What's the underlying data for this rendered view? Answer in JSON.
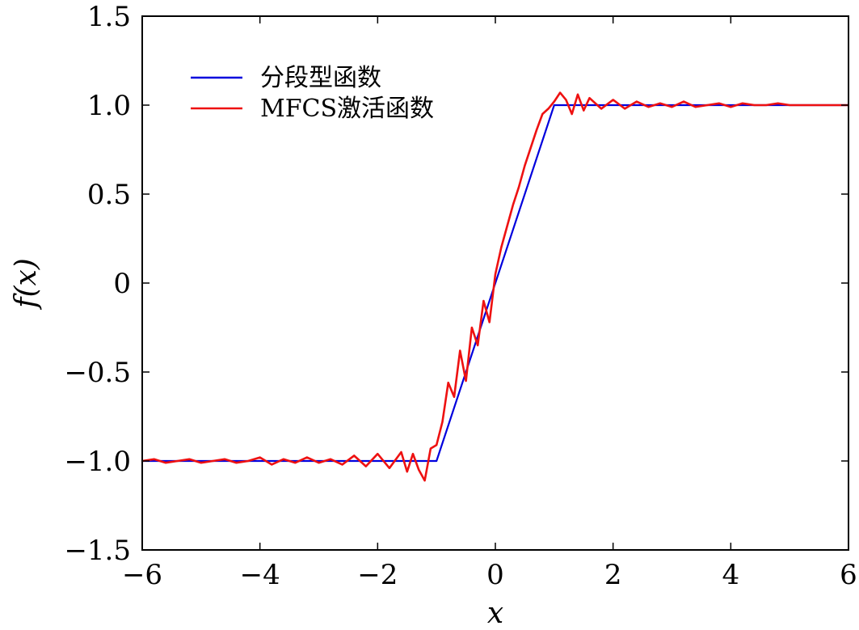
{
  "chart_data": {
    "type": "line",
    "xlabel": "x",
    "ylabel": "f(x)",
    "xlim": [
      -6,
      6
    ],
    "ylim": [
      -1.5,
      1.5
    ],
    "xticks": [
      -6,
      -4,
      -2,
      0,
      2,
      4,
      6
    ],
    "xtick_labels": [
      "−6",
      "−4",
      "−2",
      "0",
      "2",
      "4",
      "6"
    ],
    "yticks": [
      -1.5,
      -1.0,
      -0.5,
      0,
      0.5,
      1.0,
      1.5
    ],
    "ytick_labels": [
      "−1.5",
      "−1.0",
      "−0.5",
      "0",
      "0.5",
      "1.0",
      "1.5"
    ],
    "grid": false,
    "legend_position": "top-left",
    "series": [
      {
        "name": "分段型函数",
        "color": "#0000dd",
        "x": [
          -6,
          -1,
          1,
          6
        ],
        "y": [
          -1,
          -1,
          1,
          1
        ]
      },
      {
        "name": "MFCS激活函数",
        "color": "#ee1111",
        "x": [
          -6.0,
          -5.8,
          -5.6,
          -5.4,
          -5.2,
          -5.0,
          -4.8,
          -4.6,
          -4.4,
          -4.2,
          -4.0,
          -3.8,
          -3.6,
          -3.4,
          -3.2,
          -3.0,
          -2.8,
          -2.6,
          -2.4,
          -2.2,
          -2.0,
          -1.8,
          -1.6,
          -1.5,
          -1.4,
          -1.3,
          -1.2,
          -1.1,
          -1.0,
          -0.9,
          -0.8,
          -0.7,
          -0.6,
          -0.5,
          -0.4,
          -0.3,
          -0.2,
          -0.1,
          0.0,
          0.1,
          0.2,
          0.3,
          0.4,
          0.5,
          0.6,
          0.7,
          0.8,
          0.9,
          1.0,
          1.1,
          1.2,
          1.3,
          1.4,
          1.5,
          1.6,
          1.8,
          2.0,
          2.2,
          2.4,
          2.6,
          2.8,
          3.0,
          3.2,
          3.4,
          3.6,
          3.8,
          4.0,
          4.2,
          4.4,
          4.6,
          4.8,
          5.0,
          5.2,
          5.4,
          5.6,
          5.8,
          6.0
        ],
        "y": [
          -1.0,
          -0.99,
          -1.01,
          -1.0,
          -0.99,
          -1.01,
          -1.0,
          -0.99,
          -1.01,
          -1.0,
          -0.98,
          -1.02,
          -0.99,
          -1.01,
          -0.98,
          -1.01,
          -0.99,
          -1.02,
          -0.97,
          -1.03,
          -0.96,
          -1.04,
          -0.95,
          -1.06,
          -0.96,
          -1.05,
          -1.11,
          -0.93,
          -0.91,
          -0.78,
          -0.56,
          -0.64,
          -0.38,
          -0.55,
          -0.25,
          -0.35,
          -0.1,
          -0.22,
          0.05,
          0.2,
          0.32,
          0.44,
          0.54,
          0.66,
          0.76,
          0.86,
          0.95,
          0.98,
          1.02,
          1.07,
          1.03,
          0.95,
          1.06,
          0.97,
          1.04,
          0.98,
          1.03,
          0.98,
          1.02,
          0.99,
          1.01,
          0.99,
          1.02,
          0.99,
          1.0,
          1.01,
          0.99,
          1.01,
          1.0,
          1.0,
          1.01,
          1.0,
          1.0,
          1.0,
          1.0,
          1.0,
          1.0
        ]
      }
    ]
  }
}
